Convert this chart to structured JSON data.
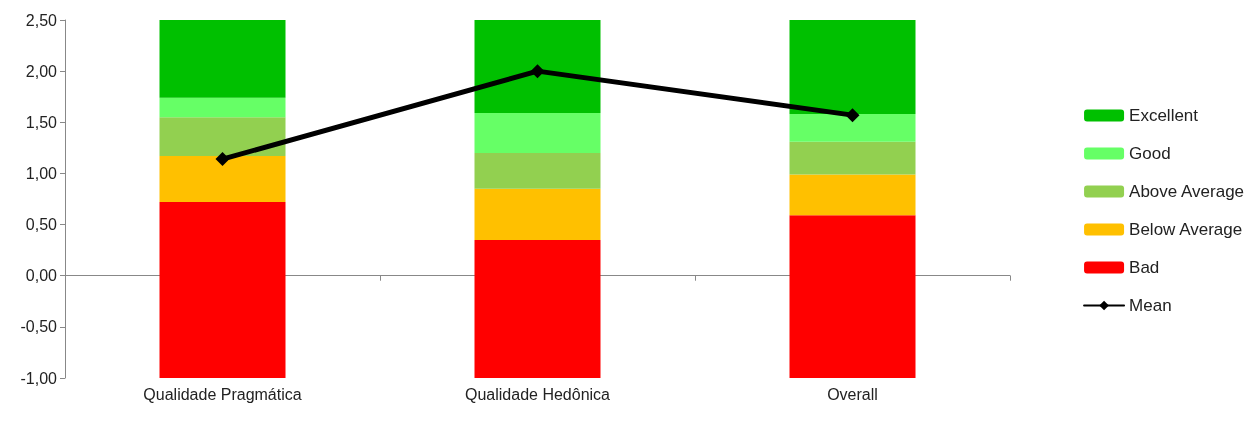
{
  "chart_data": {
    "type": "bar",
    "categories": [
      "Qualidade Pragmática",
      "Qualidade Hedônica",
      "Overall"
    ],
    "series": [
      {
        "name": "Bad",
        "color": "#ff0000",
        "base": [
          -1,
          -1,
          -1
        ],
        "values": [
          1.72,
          1.35,
          1.59
        ]
      },
      {
        "name": "Below Average",
        "color": "#ffc000",
        "base": [
          0.72,
          0.35,
          0.59
        ],
        "values": [
          0.45,
          0.5,
          0.4
        ]
      },
      {
        "name": "Above Average",
        "color": "#92d050",
        "base": [
          1.17,
          0.85,
          0.99
        ],
        "values": [
          0.38,
          0.35,
          0.32
        ]
      },
      {
        "name": "Good",
        "color": "#66ff66",
        "base": [
          1.55,
          1.2,
          1.31
        ],
        "values": [
          0.19,
          0.39,
          0.27
        ]
      },
      {
        "name": "Excellent",
        "color": "#00c000",
        "base": [
          1.74,
          1.59,
          1.58
        ],
        "values": [
          0.76,
          0.91,
          0.92
        ]
      },
      {
        "name": "Mean",
        "type": "line",
        "color": "#000000",
        "marker": "diamond",
        "values": [
          1.14,
          2.0,
          1.57
        ]
      }
    ],
    "ylim": [
      -1,
      2.5
    ],
    "yticks": [
      {
        "value": -1,
        "label": "-1,00"
      },
      {
        "value": -0.5,
        "label": "-0,50"
      },
      {
        "value": 0,
        "label": "0,00"
      },
      {
        "value": 0.5,
        "label": "0,50"
      },
      {
        "value": 1,
        "label": "1,00"
      },
      {
        "value": 1.5,
        "label": "1,50"
      },
      {
        "value": 2,
        "label": "2,00"
      },
      {
        "value": 2.5,
        "label": "2,50"
      }
    ],
    "legend": "right"
  }
}
